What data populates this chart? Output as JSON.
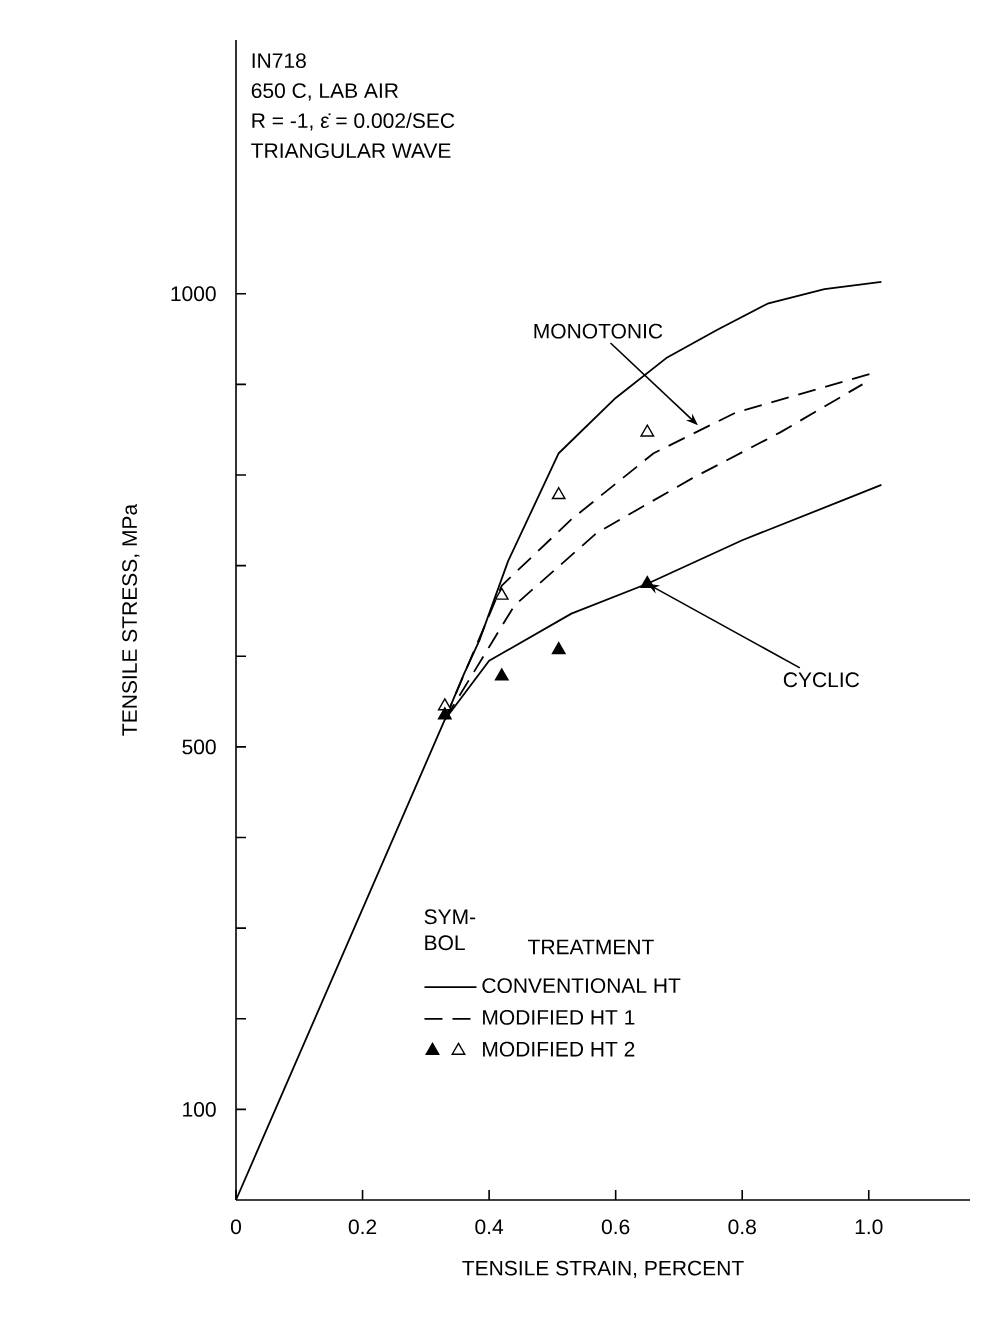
{
  "chart_data": {
    "type": "line",
    "xlabel": "TENSILE STRAIN, PERCENT",
    "ylabel": "TENSILE STRESS, MPa",
    "legend_title": "TREATMENT",
    "annotations": [
      "IN718",
      "650 C, LAB AIR",
      "R = -1, ε̇ = 0.002/SEC",
      "TRIANGULAR WAVE",
      "SYM- BOL",
      {
        "text": "MONOTONIC",
        "x": 0.73,
        "y": 855
      },
      {
        "text": "CYCLIC",
        "x": 0.65,
        "y": 680
      }
    ],
    "xlim": [
      0,
      1.16
    ],
    "ylim": [
      0,
      1280
    ],
    "xticks": [
      0,
      0.2,
      0.4,
      {
        "value": 0.6,
        "label": "0.6"
      },
      {
        "value": 0.8,
        "label": "0.8"
      },
      {
        "value": 1.0,
        "label": "1.0"
      }
    ],
    "yticks": [
      100,
      {
        "value": 200,
        "label": null
      },
      {
        "value": 300,
        "label": null
      },
      {
        "value": 400,
        "label": null
      },
      500,
      {
        "value": 600,
        "label": null
      },
      {
        "value": 700,
        "label": null
      },
      {
        "value": 800,
        "label": null
      },
      {
        "value": 900,
        "label": null
      },
      1000
    ],
    "legend": "bottom",
    "series": [
      {
        "name": "CONVENTIONAL HT",
        "line_style": "solid",
        "color": "#000000",
        "x": [
          0,
          0.33,
          0.36,
          0.385,
          0.43,
          0.51,
          0.6,
          0.68,
          0.76,
          0.84,
          0.93,
          1.02
        ],
        "values": [
          0,
          530,
          580,
          618,
          705,
          824,
          885,
          929,
          960,
          989,
          1005,
          1013
        ]
      },
      {
        "line_style": "solid",
        "color": "#000000",
        "x": [
          0.33,
          0.4,
          0.53,
          0.65,
          0.8,
          1.02
        ],
        "values": [
          530,
          595,
          647,
          680,
          728,
          789
        ]
      },
      {
        "name": "MODIFIED HT 1",
        "line_style": "dashed",
        "color": "#000000",
        "x": [
          0.33,
          0.42,
          0.53,
          0.66,
          0.79,
          1.01
        ],
        "values": [
          530,
          678,
          751,
          824,
          869,
          913
        ]
      },
      {
        "line_style": "dashed",
        "color": "#000000",
        "x": [
          0.33,
          0.44,
          0.57,
          0.72,
          0.86,
          0.99
        ],
        "values": [
          530,
          656,
          736,
          796,
          847,
          900
        ]
      },
      {
        "name": "MODIFIED HT 2",
        "type": "scatter",
        "marker": "triangle",
        "color": "#ffffff",
        "x": [
          0.33,
          0.42,
          0.51,
          0.65
        ],
        "values": [
          545,
          667,
          778,
          847
        ]
      },
      {
        "type": "scatter",
        "marker": "triangle",
        "color": "#000000",
        "x": [
          0.33,
          0.42,
          0.51,
          0.65
        ],
        "values": [
          535,
          578,
          607,
          680
        ]
      }
    ]
  }
}
